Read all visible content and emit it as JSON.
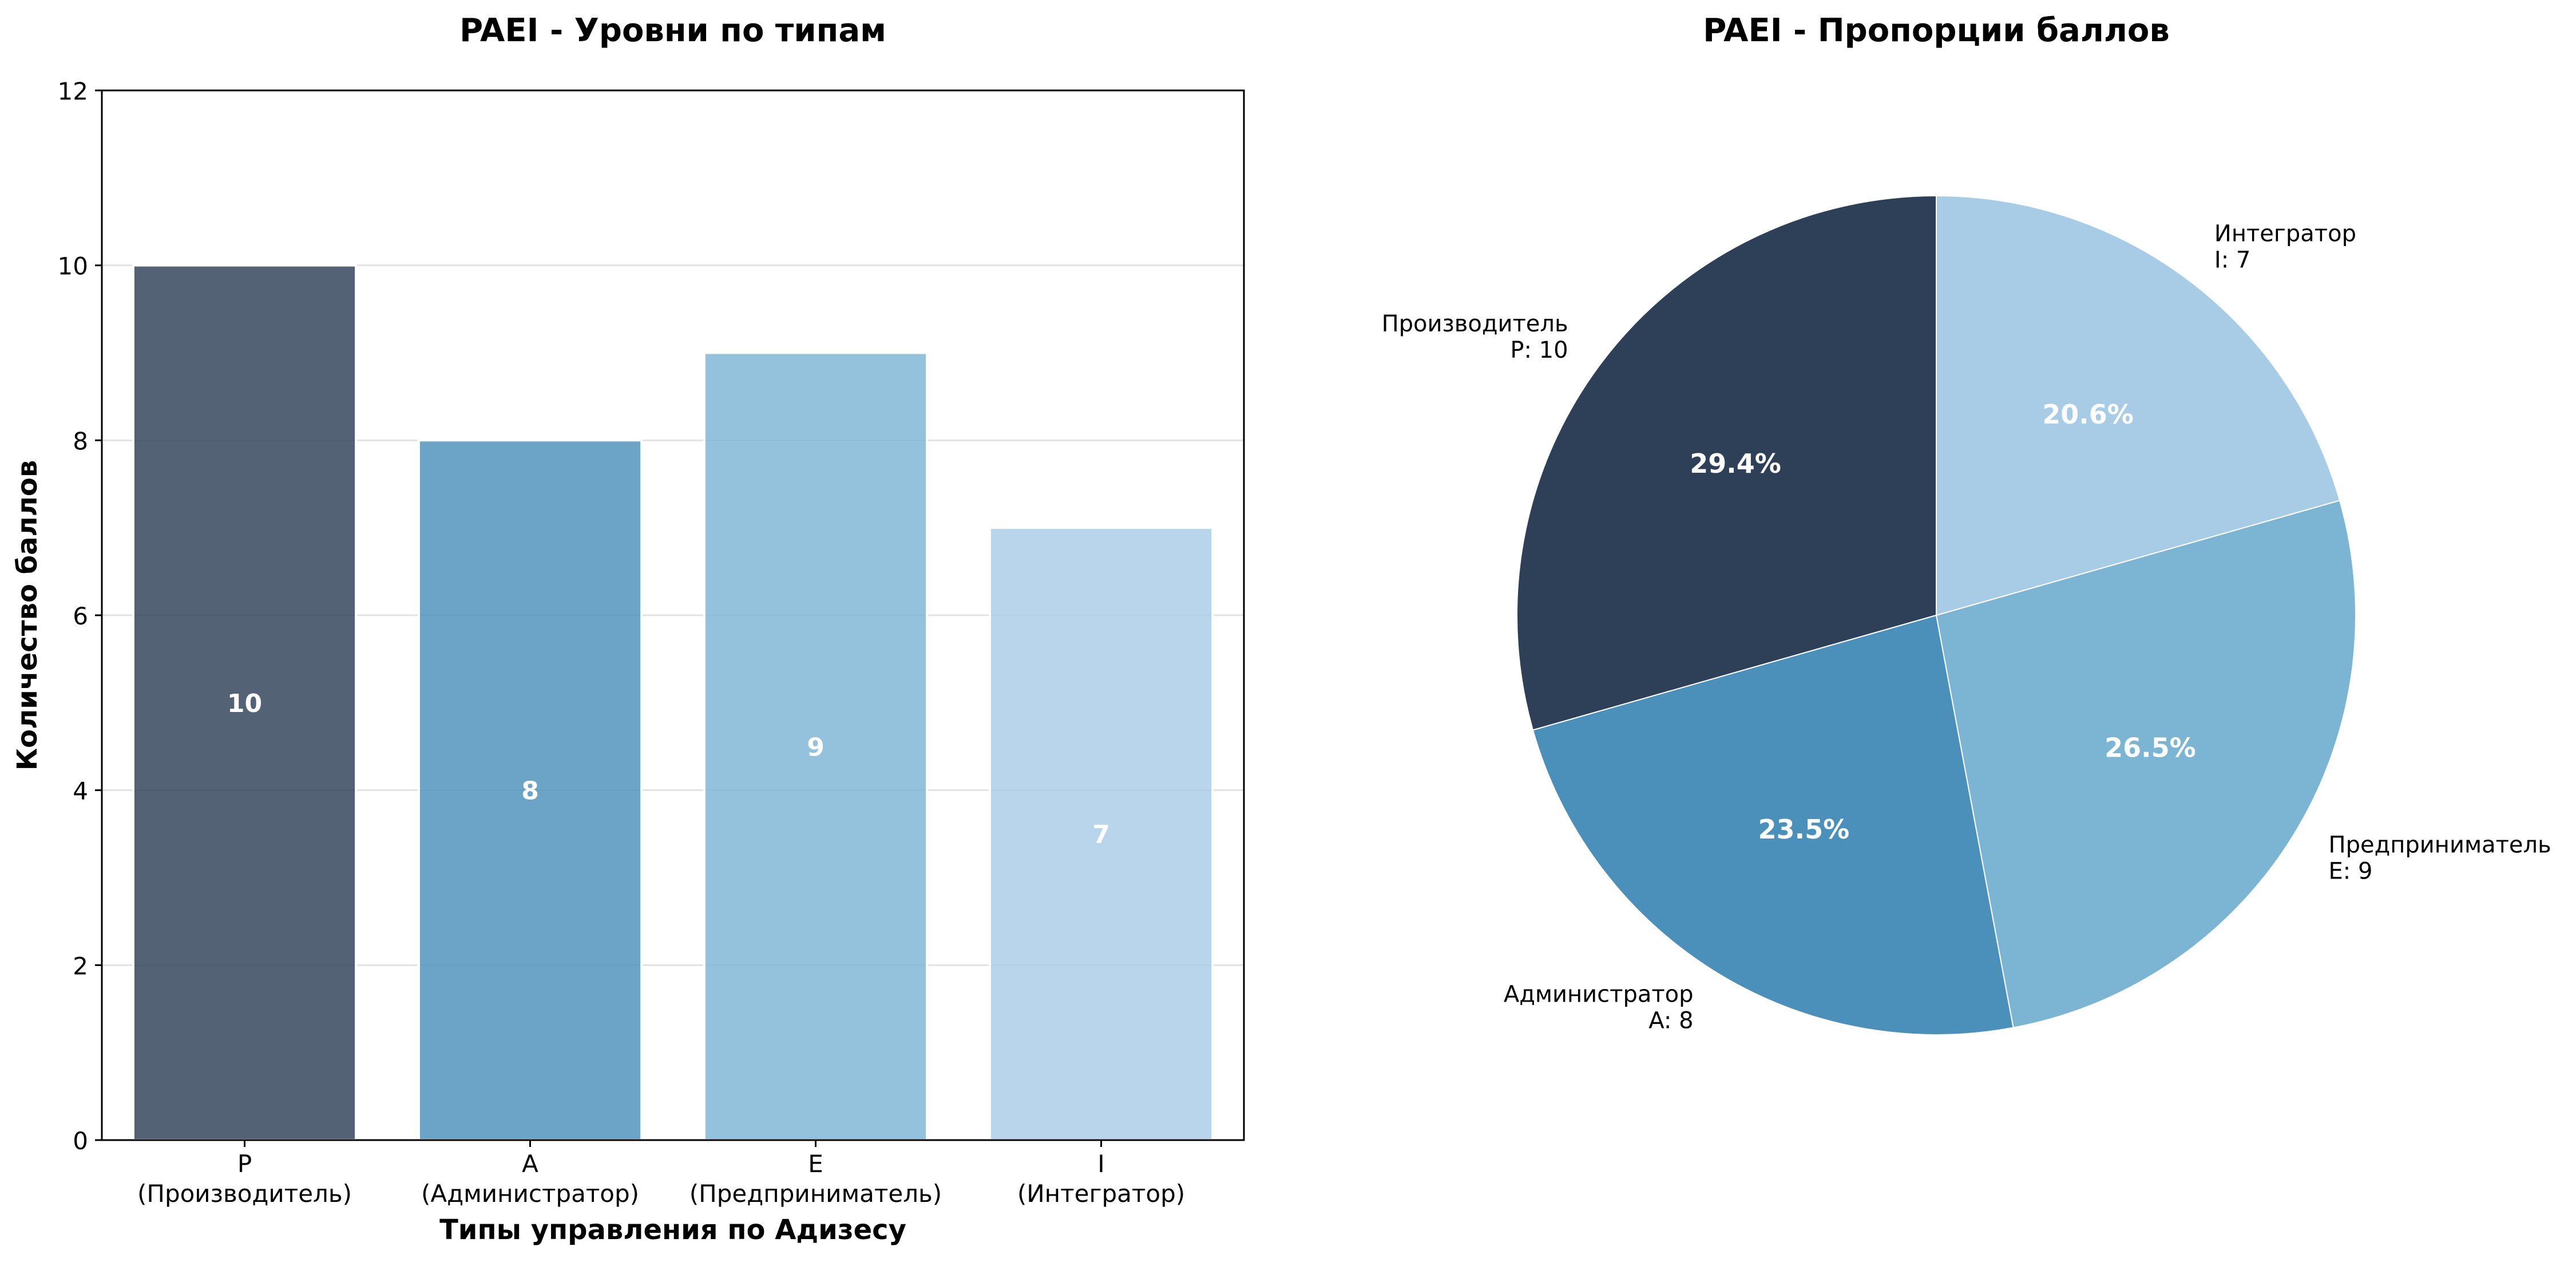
{
  "chart_data": [
    {
      "type": "bar",
      "title": "PAEI - Уровни по типам",
      "xlabel": "Типы управления по Адизесу",
      "ylabel": "Количество баллов",
      "ylim": [
        0,
        12
      ],
      "yticks": [
        0,
        2,
        4,
        6,
        8,
        10,
        12
      ],
      "categories": [
        {
          "code": "P",
          "name": "(Производитель)"
        },
        {
          "code": "A",
          "name": "(Администратор)"
        },
        {
          "code": "E",
          "name": "(Предприниматель)"
        },
        {
          "code": "I",
          "name": "(Интегратор)"
        }
      ],
      "values": [
        10,
        8,
        9,
        7
      ],
      "value_labels": [
        "10",
        "8",
        "9",
        "7"
      ],
      "colors": [
        "#2e3f58",
        "#4a90ba",
        "#7cb4d4",
        "#a9cce6"
      ],
      "grid": "y"
    },
    {
      "type": "pie",
      "title": "PAEI - Пропорции баллов",
      "slices": [
        {
          "name": "Производитель",
          "sub": "P: 10",
          "value": 10,
          "pct": "29.4%",
          "color": "#2e3f58"
        },
        {
          "name": "Администратор",
          "sub": "A: 8",
          "value": 8,
          "pct": "23.5%",
          "color": "#4a90ba"
        },
        {
          "name": "Предприниматель",
          "sub": "E: 9",
          "value": 9,
          "pct": "26.5%",
          "color": "#7cb4d4"
        },
        {
          "name": "Интегратор",
          "sub": "I: 7",
          "value": 7,
          "pct": "20.6%",
          "color": "#a9cce6"
        }
      ],
      "start_angle_deg": 90,
      "direction": "counterclockwise"
    }
  ]
}
